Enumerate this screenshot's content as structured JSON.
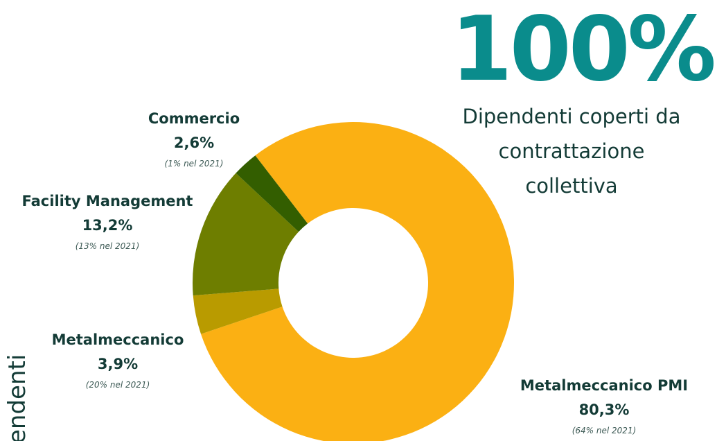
{
  "chart_data": {
    "type": "donut",
    "categories": [
      "Metalmeccanico PMI",
      "Metalmeccanico",
      "Facility Management",
      "Commercio"
    ],
    "values": [
      80.3,
      3.9,
      13.2,
      2.6
    ],
    "value_labels": [
      "80,3%",
      "3,9%",
      "13,2%",
      "2,6%"
    ],
    "notes": [
      "(64% nel 2021)",
      "(20% nel 2021)",
      "(13% nel 2021)",
      "(1% nel 2021)"
    ],
    "colors": [
      "#fbb013",
      "#b99b00",
      "#6e7e00",
      "#335e00"
    ],
    "headline": "100%",
    "subtitle": [
      "Dipendenti coperti da",
      "contrattazione",
      "collettiva"
    ],
    "side_text": "endenti"
  }
}
